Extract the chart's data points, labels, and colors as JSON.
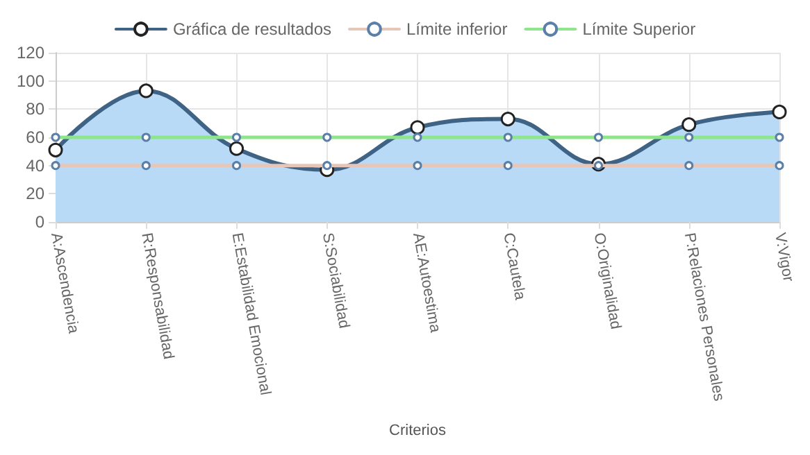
{
  "chart_data": {
    "type": "line",
    "xlabel": "Criterios",
    "categories": [
      "A:Ascendencia",
      "R:Responsabilidad",
      "E:Estabilidad Emocional",
      "S:Sociabilidad",
      "AE:Autoestima",
      "C:Cautela",
      "O:Originalidad",
      "P:Relaciones Personales",
      "V:Vigor"
    ],
    "series": [
      {
        "name": "Gráfica de resultados",
        "type": "area",
        "color": "#3e6385",
        "values": [
          51,
          93,
          52,
          37,
          67,
          73,
          41,
          69,
          78
        ]
      },
      {
        "name": "Límite inferior",
        "color": "#e6c6b8",
        "values": [
          40,
          40,
          40,
          40,
          40,
          40,
          40,
          40,
          40
        ]
      },
      {
        "name": "Límite Superior",
        "color": "#8ee68a",
        "values": [
          60,
          60,
          60,
          60,
          60,
          60,
          60,
          60,
          60
        ]
      }
    ],
    "ylim": [
      0,
      120
    ],
    "yticks": [
      0,
      20,
      40,
      60,
      80,
      100,
      120
    ],
    "grid": true,
    "legend": "top",
    "marker": "circle",
    "line_style": "solid"
  }
}
